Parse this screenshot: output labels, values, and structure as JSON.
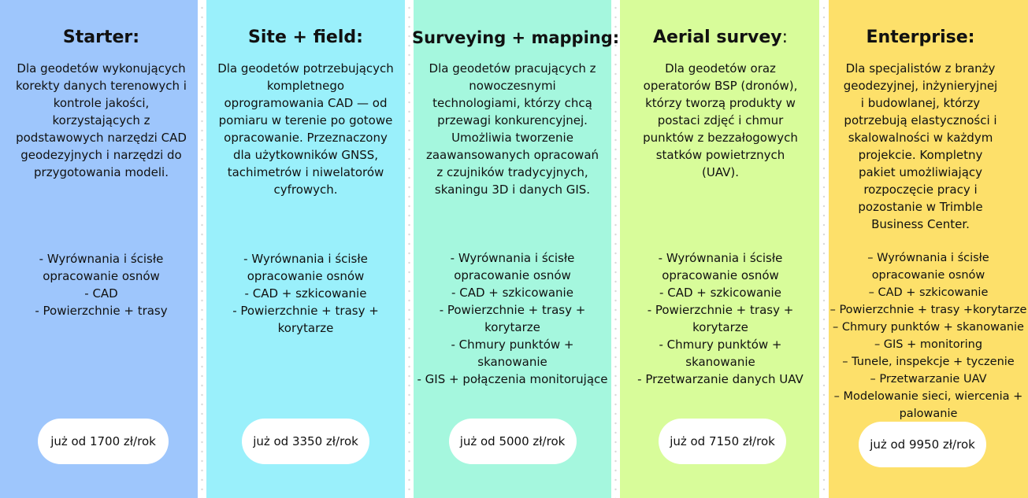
{
  "colors": {
    "starter": "#9ec6fc",
    "site_field": "#9af0fb",
    "surveying_mapping": "#a5f7de",
    "aerial_survey": "#d8fc9a",
    "enterprise": "#fde06a",
    "price_pill": "#ffffff"
  },
  "plans": [
    {
      "title": "Starter:",
      "title_suffix": "",
      "description": "Dla geodetów wykonujących korekty danych terenowych i kontrole jakości, korzystających z podstawowych narzędzi CAD geodezyjnych i narzędzi do przygotowania modeli.",
      "features": [
        "- Wyrównania i ścisłe",
        "opracowanie osnów",
        "- CAD",
        "- Powierzchnie + trasy"
      ],
      "price": "już od 1700 zł/rok"
    },
    {
      "title": "Site + field:",
      "title_suffix": "",
      "description": "Dla geodetów potrzebujących kompletnego oprogramowania CAD — od pomiaru w terenie po gotowe opracowanie. Przeznaczony dla użytkowników GNSS, tachimetrów i niwelatorów cyfrowych.",
      "features": [
        "- Wyrównania i ścisłe",
        "opracowanie osnów",
        "- CAD + szkicowanie",
        "- Powierzchnie + trasy +",
        "korytarze"
      ],
      "price": "już od 3350 zł/rok"
    },
    {
      "title": "Surveying + mapping:",
      "title_suffix": "",
      "description": "Dla geodetów pracujących z nowoczesnymi technologiami, którzy chcą przewagi konkurencyjnej. Umożliwia tworzenie zaawansowanych opracowań z czujników tradycyjnych, skaningu 3D i danych GIS.",
      "features": [
        "- Wyrównania i ścisłe",
        "opracowanie osnów",
        "- CAD + szkicowanie",
        "- Powierzchnie + trasy +",
        "korytarze",
        "- Chmury punktów +",
        "skanowanie",
        "- GIS + połączenia monitorujące"
      ],
      "price": "już od 5000 zł/rok"
    },
    {
      "title": "Aerial survey",
      "title_suffix": ":",
      "description": "Dla geodetów oraz operatorów BSP (dronów), którzy tworzą produkty w postaci zdjęć i chmur punktów z bezzałogowych statków powietrznych (UAV).",
      "features": [
        "- Wyrównania i ścisłe",
        "opracowanie osnów",
        "- CAD + szkicowanie",
        "- Powierzchnie + trasy +",
        "korytarze",
        "- Chmury punktów +",
        "skanowanie",
        "- Przetwarzanie danych UAV"
      ],
      "price": "już od 7150 zł/rok"
    },
    {
      "title": "Enterprise:",
      "title_suffix": "",
      "description": "Dla specjalistów z branży geodezyjnej, inżynieryjnej i budowlanej, którzy potrzebują elastyczności i skalowalności w każdym projekcie. Kompletny pakiet umożliwiający rozpoczęcie pracy i pozostanie w Trimble Business Center.",
      "features": [
        "– Wyrównania i ścisłe",
        "opracowanie osnów",
        "– CAD + szkicowanie",
        "– Powierzchnie + trasy +korytarze",
        "– Chmury punktów + skanowanie",
        "– GIS + monitoring",
        "– Tunele, inspekcje + tyczenie",
        "– Przetwarzanie UAV",
        "– Modelowanie sieci, wiercenia + palowanie"
      ],
      "price": "już od 9950 zł/rok"
    }
  ]
}
